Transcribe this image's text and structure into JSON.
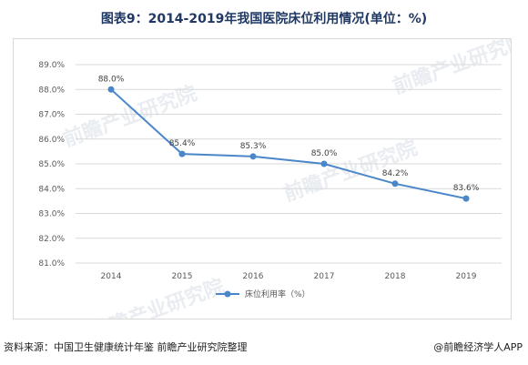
{
  "title": "图表9：2014-2019年我国医院床位利用情况(单位：%)",
  "footer": {
    "source": "资料来源：中国卫生健康统计年鉴 前瞻产业研究院整理",
    "brand": "@前瞻经济学人APP"
  },
  "watermark": "前瞻产业研究院",
  "colors": {
    "line": "#4a86c8",
    "grid": "#d9d9d9",
    "title": "#1f3864"
  },
  "chart_data": {
    "type": "line",
    "categories": [
      "2014",
      "2015",
      "2016",
      "2017",
      "2018",
      "2019"
    ],
    "series": [
      {
        "name": "床位利用率（%）",
        "values": [
          88.0,
          85.4,
          85.3,
          85.0,
          84.2,
          83.6
        ]
      }
    ],
    "data_labels": [
      "88.0%",
      "85.4%",
      "85.3%",
      "85.0%",
      "84.2%",
      "83.6%"
    ],
    "yticks": [
      "81.0%",
      "82.0%",
      "83.0%",
      "84.0%",
      "85.0%",
      "86.0%",
      "87.0%",
      "88.0%",
      "89.0%"
    ],
    "ylim": [
      81,
      89
    ],
    "grid": true,
    "legend": "bottom"
  }
}
